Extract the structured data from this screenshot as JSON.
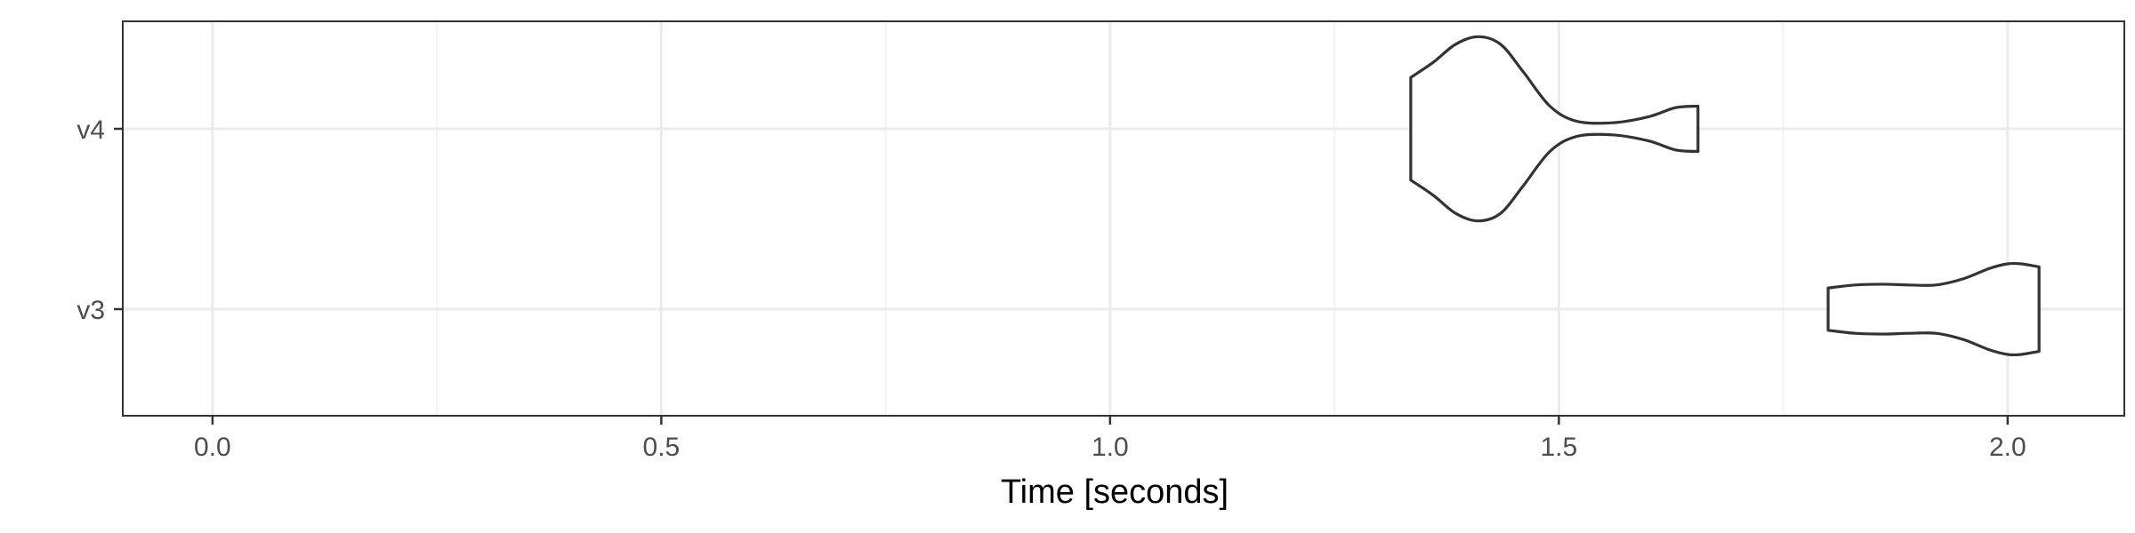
{
  "chart_data": {
    "type": "violin",
    "orientation": "horizontal",
    "title": "",
    "xlabel": "Time [seconds]",
    "ylabel": "",
    "xlim": [
      -0.1,
      2.13
    ],
    "x_ticks": [
      0.0,
      0.5,
      1.0,
      1.5,
      2.0
    ],
    "x_tick_labels": [
      "0.0",
      "0.5",
      "1.0",
      "1.5",
      "2.0"
    ],
    "categories": [
      "v3",
      "v4"
    ],
    "grid": true,
    "legend": "none",
    "series": [
      {
        "category": "v3",
        "range": [
          1.8,
          2.035
        ],
        "density_profile": [
          [
            1.8,
            0.14
          ],
          [
            1.83,
            0.16
          ],
          [
            1.86,
            0.165
          ],
          [
            1.89,
            0.16
          ],
          [
            1.92,
            0.16
          ],
          [
            1.95,
            0.2
          ],
          [
            1.98,
            0.27
          ],
          [
            2.0,
            0.3
          ],
          [
            2.015,
            0.3
          ],
          [
            2.035,
            0.28
          ]
        ]
      },
      {
        "category": "v4",
        "range": [
          1.335,
          1.655
        ],
        "density_profile": [
          [
            1.335,
            0.34
          ],
          [
            1.36,
            0.44
          ],
          [
            1.385,
            0.56
          ],
          [
            1.41,
            0.61
          ],
          [
            1.435,
            0.56
          ],
          [
            1.46,
            0.38
          ],
          [
            1.49,
            0.15
          ],
          [
            1.52,
            0.05
          ],
          [
            1.56,
            0.04
          ],
          [
            1.6,
            0.08
          ],
          [
            1.63,
            0.14
          ],
          [
            1.655,
            0.15
          ]
        ]
      }
    ]
  }
}
